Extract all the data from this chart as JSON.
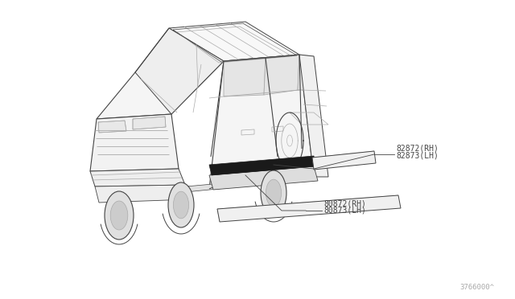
{
  "bg_color": "#ffffff",
  "lc": "#aaaaaa",
  "dc": "#444444",
  "mc": "#222222",
  "diagram_code": "3766000^",
  "label1_line1": "82872(RH)",
  "label1_line2": "82873(LH)",
  "label2_line1": "80872(RH)",
  "label2_line2": "80873(LH)",
  "font_size_label": 7.0,
  "font_size_code": 6.5,
  "car_scale": 1.0,
  "car_ox": 0,
  "car_oy": 0
}
